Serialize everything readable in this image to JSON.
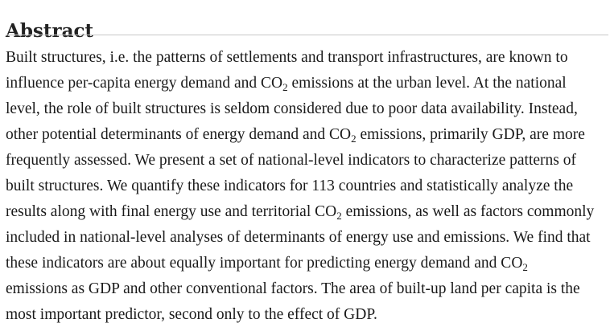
{
  "heading": "Abstract",
  "abstract": {
    "lines": [
      {
        "segments": [
          {
            "text": "Built structures, i.e. the patterns of settlements and transport infrastructures, are known to"
          }
        ]
      },
      {
        "segments": [
          {
            "text": "influence per-capita energy demand and CO"
          },
          {
            "text": "2",
            "sub": true
          },
          {
            "text": " emissions at the urban level. At the national"
          }
        ]
      },
      {
        "segments": [
          {
            "text": "level, the role of built structures is seldom considered due to poor data availability. Instead,"
          }
        ]
      },
      {
        "segments": [
          {
            "text": "other potential determinants of energy demand and CO"
          },
          {
            "text": "2",
            "sub": true
          },
          {
            "text": " emissions, primarily GDP, are more"
          }
        ]
      },
      {
        "segments": [
          {
            "text": "frequently assessed. We present a set of national-level indicators to characterize patterns of"
          }
        ]
      },
      {
        "segments": [
          {
            "text": "built structures. We quantify these indicators for 113 countries and statistically analyze the"
          }
        ]
      },
      {
        "segments": [
          {
            "text": "results along with final energy use and territorial CO"
          },
          {
            "text": "2",
            "sub": true
          },
          {
            "text": " emissions, as well as factors commonly"
          }
        ]
      },
      {
        "segments": [
          {
            "text": "included in national-level analyses of determinants of energy use and emissions. We find that"
          }
        ]
      },
      {
        "segments": [
          {
            "text": "these indicators are about equally important for predicting energy demand and CO"
          },
          {
            "text": "2",
            "sub": true
          }
        ]
      },
      {
        "segments": [
          {
            "text": "emissions as GDP and other conventional factors. The area of built-up land per capita is the"
          }
        ]
      },
      {
        "segments": [
          {
            "text": "most important predictor, second only to the effect of GDP."
          }
        ]
      }
    ]
  }
}
